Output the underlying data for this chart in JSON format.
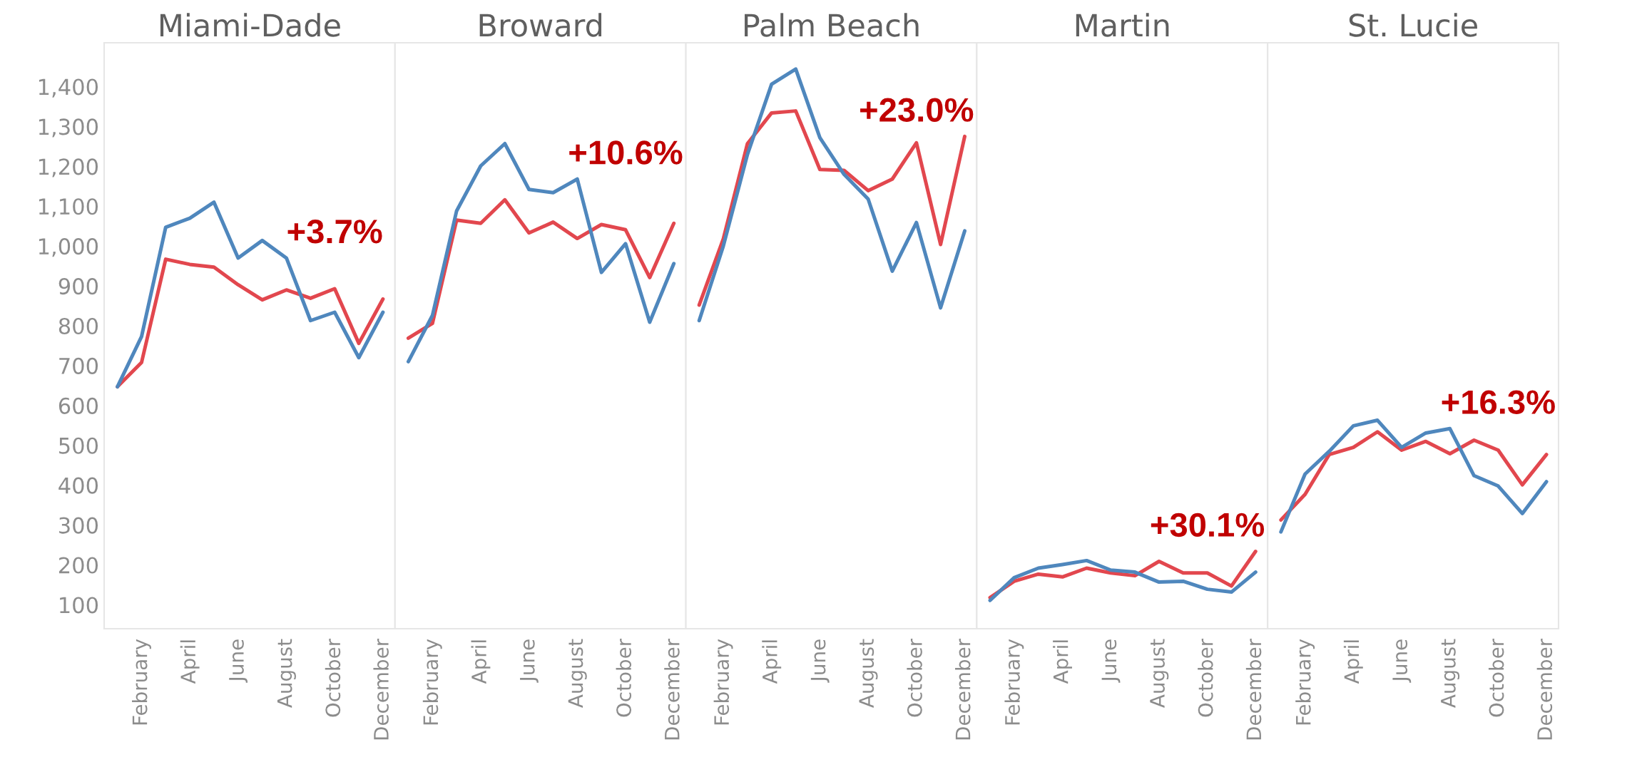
{
  "chart_data": [
    {
      "type": "line",
      "title": "Miami-Dade",
      "categories": [
        null,
        "February",
        null,
        "April",
        null,
        "June",
        null,
        "August",
        null,
        "October",
        null,
        "December"
      ],
      "ylim": [
        40,
        1510
      ],
      "yticks": [
        100,
        200,
        300,
        400,
        500,
        600,
        700,
        800,
        900,
        {
          "value": 1000,
          "label": "1,000"
        },
        {
          "value": 1100,
          "label": "1,100"
        },
        {
          "value": 1200,
          "label": "1,200"
        },
        {
          "value": 1300,
          "label": "1,300"
        },
        {
          "value": 1400,
          "label": "1,400"
        }
      ],
      "series": [
        {
          "color": "#e2474e",
          "values": [
            647,
            708,
            967,
            954,
            947,
            903,
            865,
            890,
            869,
            893,
            756,
            867
          ]
        },
        {
          "color": "#4f87bd",
          "values": [
            647,
            773,
            1047,
            1070,
            1110,
            970,
            1014,
            970,
            813,
            834,
            720,
            834
          ]
        }
      ],
      "annotations": [
        "+3.7%"
      ]
    },
    {
      "type": "line",
      "title": "Broward",
      "categories": [
        null,
        "February",
        null,
        "April",
        null,
        "June",
        null,
        "August",
        null,
        "October",
        null,
        "December"
      ],
      "ylim": [
        40,
        1510
      ],
      "tick_labels": "x",
      "series": [
        {
          "color": "#e2474e",
          "values": [
            769,
            806,
            1065,
            1057,
            1116,
            1033,
            1060,
            1019,
            1054,
            1041,
            921,
            1057
          ]
        },
        {
          "color": "#4f87bd",
          "values": [
            710,
            826,
            1088,
            1201,
            1257,
            1142,
            1134,
            1168,
            934,
            1006,
            809,
            956
          ]
        }
      ],
      "annotations": [
        "+10.6%"
      ]
    },
    {
      "type": "line",
      "title": "Palm Beach",
      "categories": [
        null,
        "February",
        null,
        "April",
        null,
        "June",
        null,
        "August",
        null,
        "October",
        null,
        "December"
      ],
      "ylim": [
        40,
        1510
      ],
      "tick_labels": "x",
      "series": [
        {
          "color": "#e2474e",
          "values": [
            852,
            1018,
            1257,
            1334,
            1339,
            1192,
            1190,
            1139,
            1168,
            1259,
            1004,
            1275
          ]
        },
        {
          "color": "#4f87bd",
          "values": [
            813,
            1000,
            1230,
            1406,
            1444,
            1272,
            1180,
            1118,
            937,
            1059,
            845,
            1038
          ]
        }
      ],
      "annotations": [
        "+23.0%"
      ]
    },
    {
      "type": "line",
      "title": "Martin",
      "categories": [
        null,
        "February",
        null,
        "April",
        null,
        "June",
        null,
        "August",
        null,
        "October",
        null,
        "December"
      ],
      "ylim": [
        40,
        1510
      ],
      "tick_labels": "x",
      "series": [
        {
          "color": "#e2474e",
          "values": [
            118,
            159,
            177,
            170,
            192,
            180,
            173,
            209,
            180,
            180,
            147,
            234
          ]
        },
        {
          "color": "#4f87bd",
          "values": [
            111,
            168,
            192,
            201,
            211,
            187,
            182,
            157,
            159,
            139,
            132,
            182
          ]
        }
      ],
      "annotations": [
        "+30.1%"
      ]
    },
    {
      "type": "line",
      "title": "St. Lucie",
      "categories": [
        null,
        "February",
        null,
        "April",
        null,
        "June",
        null,
        "August",
        null,
        "October",
        null,
        "December"
      ],
      "ylim": [
        40,
        1510
      ],
      "tick_labels": "x",
      "series": [
        {
          "color": "#e2474e",
          "values": [
            313,
            377,
            477,
            495,
            534,
            488,
            510,
            479,
            513,
            488,
            401,
            477
          ]
        },
        {
          "color": "#4f87bd",
          "values": [
            283,
            428,
            485,
            549,
            563,
            495,
            531,
            542,
            424,
            398,
            329,
            409
          ]
        }
      ],
      "annotations": [
        "+16.3%"
      ]
    }
  ]
}
